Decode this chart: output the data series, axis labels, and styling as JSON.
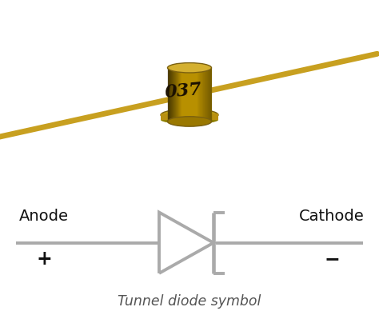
{
  "bg_photo": "#ffffff",
  "bg_diagram": "#efefef",
  "symbol_color": "#aaaaaa",
  "text_color": "#111111",
  "label_anode": "Anode",
  "label_cathode": "Cathode",
  "label_plus": "+",
  "label_minus": "−",
  "label_title": "Tunnel diode symbol",
  "wire_color": "#c8a000",
  "body_color": "#c8a020",
  "body_dark": "#7a6010",
  "body_shadow": "#906000",
  "body_highlight": "#e0c060",
  "flange_color": "#c0a000",
  "symbol_lw": 2.8,
  "wire_lw": 3.5
}
